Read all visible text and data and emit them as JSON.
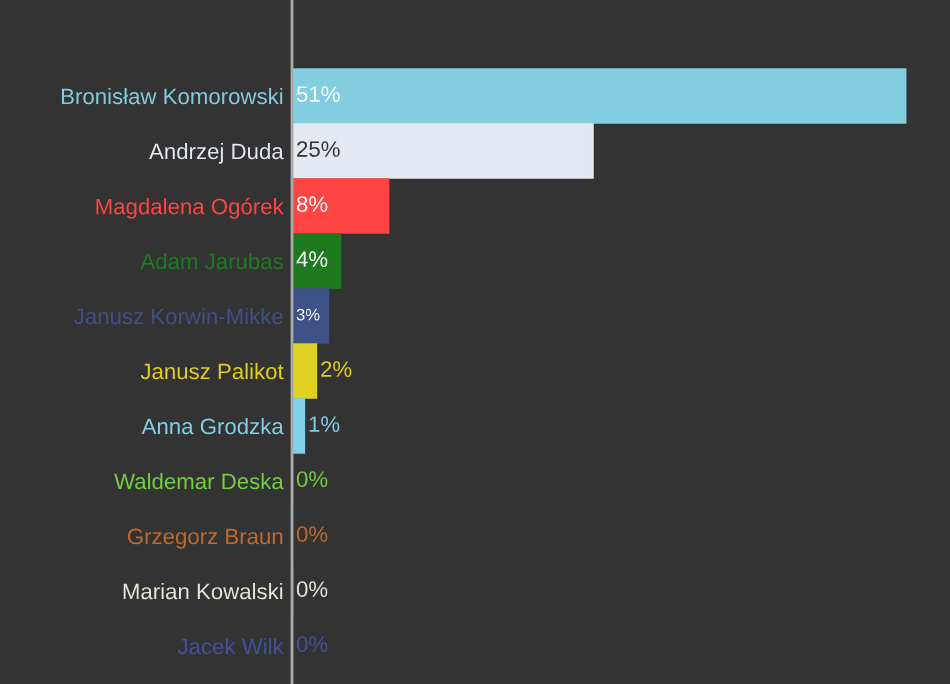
{
  "chart_data": {
    "type": "bar",
    "orientation": "horizontal",
    "data_labels": true,
    "value_labels": [
      "51%",
      "25%",
      "8%",
      "4%",
      "3%",
      "2%",
      "1%",
      "0%",
      "0%",
      "0%",
      "0%"
    ],
    "categories": [
      "Bronisław Komorowski",
      "Andrzej Duda",
      "Magdalena Ogórek",
      "Adam Jarubas",
      "Janusz Korwin-Mikke",
      "Janusz Palikot",
      "Anna Grodzka",
      "Waldemar Deska",
      "Grzegorz Braun",
      "Marian Kowalski",
      "Jacek Wilk"
    ],
    "values": [
      51,
      25,
      8,
      4,
      3,
      2,
      1,
      0,
      0,
      0,
      0
    ],
    "colors": [
      "#83cde0",
      "#e4e8f0",
      "#ff4444",
      "#1e7a1e",
      "#3e5288",
      "#e0d020",
      "#80d0e8",
      "#70d040",
      "#c06a30",
      "#e8e4d8",
      "#4050a0"
    ]
  }
}
